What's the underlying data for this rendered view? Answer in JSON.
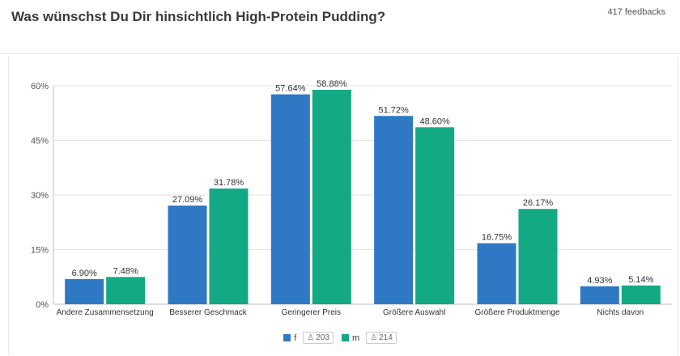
{
  "header": {
    "title": "Was wünschst Du Dir hinsichtlich High-Protein Pudding?",
    "feedback_count": "417 feedbacks"
  },
  "legend": {
    "items": [
      {
        "label": "f",
        "count": "203",
        "color": "#2f78c4"
      },
      {
        "label": "m",
        "count": "214",
        "color": "#14a985"
      }
    ]
  },
  "chart_data": {
    "type": "bar",
    "categories": [
      "Andere Zusammensetzung",
      "Besserer Geschmack",
      "Geringerer Preis",
      "Größere Auswahl",
      "Größere Produktmenge",
      "Nichts davon"
    ],
    "series": [
      {
        "name": "f",
        "color": "#2f78c4",
        "values": [
          6.9,
          27.09,
          57.64,
          51.72,
          16.75,
          4.93
        ],
        "labels": [
          "6.90%",
          "27.09%",
          "57.64%",
          "51.72%",
          "16.75%",
          "4.93%"
        ]
      },
      {
        "name": "m",
        "color": "#14a985",
        "values": [
          7.48,
          31.78,
          58.88,
          48.6,
          26.17,
          5.14
        ],
        "labels": [
          "7.48%",
          "31.78%",
          "58.88%",
          "48.60%",
          "26.17%",
          "5.14%"
        ]
      }
    ],
    "ylim": [
      0,
      60
    ],
    "yticks": [
      0,
      15,
      30,
      45,
      60
    ],
    "ytick_labels": [
      "0%",
      "15%",
      "30%",
      "45%",
      "60%"
    ],
    "grid": true,
    "legend_position": "bottom-center"
  }
}
